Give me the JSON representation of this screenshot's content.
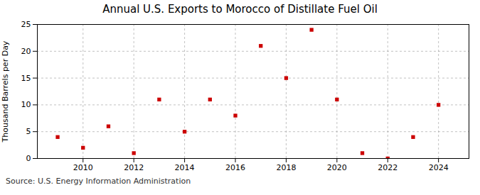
{
  "chart_data": {
    "type": "scatter",
    "title": "Annual U.S. Exports to Morocco of Distillate Fuel Oil",
    "ylabel": "Thousand Barrels per Day",
    "source": "Source: U.S. Energy Information Administration",
    "x": [
      2009,
      2010,
      2011,
      2012,
      2013,
      2014,
      2015,
      2016,
      2017,
      2018,
      2019,
      2020,
      2021,
      2022,
      2023,
      2024
    ],
    "values": [
      4,
      2,
      6,
      1,
      11,
      5,
      11,
      8,
      21,
      15,
      24,
      11,
      1,
      0,
      4,
      10
    ],
    "color": "#cc0000",
    "marker": "square",
    "xlim": [
      2008.2,
      2025.2
    ],
    "ylim": [
      0,
      25
    ],
    "xticks": [
      2010,
      2012,
      2014,
      2016,
      2018,
      2020,
      2022,
      2024
    ],
    "yticks": [
      0,
      5,
      10,
      15,
      20,
      25
    ],
    "grid": true
  }
}
